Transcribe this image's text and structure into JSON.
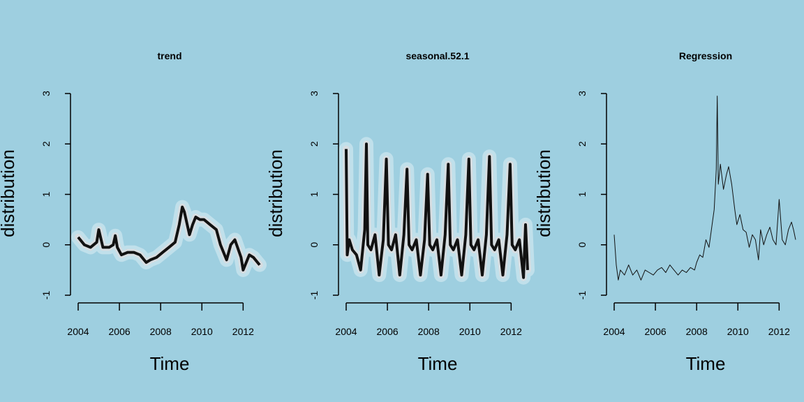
{
  "figure": {
    "background": "#9ecfe0",
    "band_color": "#ffffff",
    "line_color": "#111111"
  },
  "chart_data": [
    {
      "type": "line",
      "title": "trend",
      "xlabel": "Time",
      "ylabel": "distribution",
      "xlim": [
        2004,
        2012.8
      ],
      "ylim": [
        -1,
        3
      ],
      "xticks": [
        "2004",
        "2006",
        "2008",
        "2010",
        "2012"
      ],
      "yticks": [
        "-1",
        "0",
        "1",
        "2",
        "3"
      ],
      "band": "posterior spread",
      "series": [
        {
          "x": [
            2004.0,
            2004.3,
            2004.6,
            2004.9,
            2005.0,
            2005.2,
            2005.5,
            2005.7,
            2005.8,
            2005.9,
            2006.1,
            2006.4,
            2006.7,
            2007.0,
            2007.3,
            2007.5,
            2007.8,
            2008.1,
            2008.4,
            2008.7,
            2008.9,
            2009.05,
            2009.15,
            2009.4,
            2009.55,
            2009.7,
            2009.9,
            2010.1,
            2010.4,
            2010.7,
            2010.9,
            2011.2,
            2011.4,
            2011.6,
            2011.9,
            2012.0,
            2012.3,
            2012.5,
            2012.8
          ],
          "y": [
            0.15,
            0.0,
            -0.05,
            0.05,
            0.3,
            -0.05,
            -0.05,
            0.0,
            0.18,
            -0.05,
            -0.2,
            -0.15,
            -0.15,
            -0.2,
            -0.35,
            -0.3,
            -0.25,
            -0.15,
            -0.05,
            0.05,
            0.4,
            0.75,
            0.65,
            0.2,
            0.4,
            0.55,
            0.5,
            0.5,
            0.4,
            0.3,
            0.0,
            -0.3,
            0.0,
            0.1,
            -0.25,
            -0.5,
            -0.2,
            -0.25,
            -0.4
          ]
        }
      ]
    },
    {
      "type": "line",
      "title": "seasonal.52.1",
      "xlabel": "Time",
      "ylabel": "distribution",
      "xlim": [
        2004,
        2012.8
      ],
      "ylim": [
        -1,
        3
      ],
      "xticks": [
        "2004",
        "2006",
        "2008",
        "2010",
        "2012"
      ],
      "yticks": [
        "-1",
        "0",
        "1",
        "2",
        "3"
      ],
      "band": "posterior spread",
      "series": [
        {
          "x": [
            2004.0,
            2004.05,
            2004.15,
            2004.3,
            2004.5,
            2004.7,
            2004.9,
            2004.98,
            2005.05,
            2005.2,
            2005.4,
            2005.6,
            2005.8,
            2005.95,
            2006.05,
            2006.2,
            2006.4,
            2006.6,
            2006.8,
            2006.95,
            2007.05,
            2007.2,
            2007.4,
            2007.6,
            2007.8,
            2007.95,
            2008.05,
            2008.2,
            2008.4,
            2008.6,
            2008.8,
            2008.95,
            2009.05,
            2009.2,
            2009.4,
            2009.6,
            2009.8,
            2009.95,
            2010.05,
            2010.2,
            2010.4,
            2010.6,
            2010.8,
            2010.95,
            2011.05,
            2011.2,
            2011.4,
            2011.6,
            2011.8,
            2011.95,
            2012.05,
            2012.2,
            2012.4,
            2012.6,
            2012.7,
            2012.8
          ],
          "y": [
            1.9,
            -0.2,
            0.1,
            -0.1,
            -0.2,
            -0.5,
            0.3,
            2.0,
            0.0,
            -0.1,
            0.2,
            -0.6,
            0.1,
            1.7,
            0.0,
            -0.1,
            0.2,
            -0.6,
            0.2,
            1.5,
            0.0,
            -0.1,
            0.1,
            -0.6,
            0.1,
            1.4,
            0.0,
            -0.1,
            0.1,
            -0.6,
            0.2,
            1.6,
            0.0,
            -0.1,
            0.1,
            -0.6,
            0.2,
            1.7,
            0.0,
            -0.1,
            0.1,
            -0.6,
            0.2,
            1.75,
            0.0,
            -0.1,
            0.1,
            -0.6,
            0.2,
            1.6,
            0.0,
            -0.1,
            0.1,
            -0.65,
            0.4,
            -0.5
          ]
        }
      ]
    },
    {
      "type": "line",
      "title": "Regression",
      "xlabel": "Time",
      "ylabel": "distribution",
      "xlim": [
        2004,
        2012.8
      ],
      "ylim": [
        -1,
        3
      ],
      "xticks": [
        "2004",
        "2006",
        "2008",
        "2010",
        "2012"
      ],
      "yticks": [
        "-1",
        "0",
        "1",
        "2",
        "3"
      ],
      "series": [
        {
          "x": [
            2004.0,
            2004.1,
            2004.2,
            2004.3,
            2004.5,
            2004.7,
            2004.9,
            2005.1,
            2005.3,
            2005.5,
            2005.7,
            2005.9,
            2006.1,
            2006.3,
            2006.5,
            2006.7,
            2006.9,
            2007.1,
            2007.3,
            2007.5,
            2007.7,
            2007.9,
            2008.0,
            2008.15,
            2008.3,
            2008.45,
            2008.6,
            2008.75,
            2008.85,
            2008.95,
            2009.0,
            2009.05,
            2009.15,
            2009.3,
            2009.45,
            2009.55,
            2009.7,
            2009.85,
            2009.95,
            2010.1,
            2010.25,
            2010.4,
            2010.55,
            2010.7,
            2010.85,
            2011.0,
            2011.1,
            2011.25,
            2011.4,
            2011.55,
            2011.7,
            2011.85,
            2012.0,
            2012.15,
            2012.3,
            2012.45,
            2012.6,
            2012.7,
            2012.8
          ],
          "y": [
            0.2,
            -0.4,
            -0.7,
            -0.5,
            -0.6,
            -0.4,
            -0.6,
            -0.5,
            -0.7,
            -0.5,
            -0.55,
            -0.6,
            -0.5,
            -0.45,
            -0.55,
            -0.4,
            -0.5,
            -0.6,
            -0.5,
            -0.55,
            -0.45,
            -0.5,
            -0.35,
            -0.2,
            -0.25,
            0.1,
            -0.05,
            0.4,
            0.7,
            1.5,
            2.95,
            1.2,
            1.6,
            1.1,
            1.4,
            1.55,
            1.2,
            0.7,
            0.4,
            0.6,
            0.3,
            0.25,
            -0.05,
            0.2,
            0.1,
            -0.3,
            0.3,
            0.0,
            0.2,
            0.35,
            0.1,
            0.0,
            0.9,
            0.1,
            0.0,
            0.3,
            0.45,
            0.3,
            0.1
          ]
        }
      ]
    }
  ]
}
